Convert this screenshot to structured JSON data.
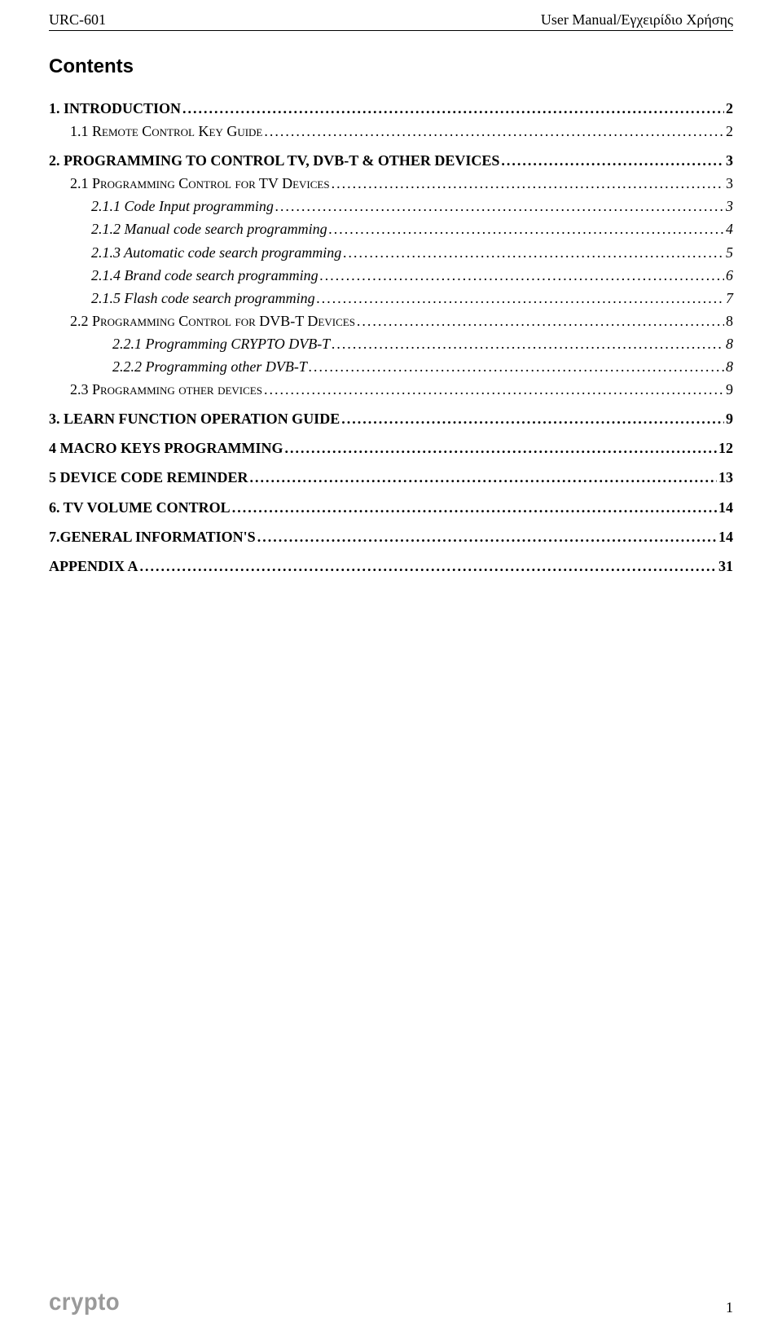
{
  "header": {
    "left": "URC-601",
    "right": "User Manual/Εγχειρίδιο Χρήσης"
  },
  "title": "Contents",
  "toc": [
    {
      "label": "1. INTRODUCTION",
      "page": "2",
      "level": 0
    },
    {
      "label": "1.1 Remote Control Key Guide",
      "page": "2",
      "level": 1
    },
    {
      "label": "2. PROGRAMMING TO CONTROL TV, DVB-T & OTHER DEVICES",
      "page": "3",
      "level": 0
    },
    {
      "label": "2.1 Programming Control for TV Devices",
      "page": "3",
      "level": 1
    },
    {
      "label": "2.1.1 Code Input programming",
      "page": "3",
      "level": 2
    },
    {
      "label": "2.1.2 Manual code search programming",
      "page": "4",
      "level": 2
    },
    {
      "label": "2.1.3 Automatic code search programming",
      "page": "5",
      "level": 2
    },
    {
      "label": "2.1.4 Brand code search programming",
      "page": "6",
      "level": 2
    },
    {
      "label": "2.1.5 Flash code search programming",
      "page": "7",
      "level": 2
    },
    {
      "label": "2.2 Programming Control for DVB-T Devices",
      "page": "8",
      "level": 1
    },
    {
      "label": "2.2.1 Programming CRYPTO DVB-T",
      "page": "8",
      "level": 3
    },
    {
      "label": "2.2.2 Programming other DVB-T",
      "page": "8",
      "level": 3
    },
    {
      "label": "2.3 Programming other devices",
      "page": "9",
      "level": 1
    },
    {
      "label": "3. LEARN FUNCTION OPERATION GUIDE",
      "page": "9",
      "level": 0
    },
    {
      "label": "4 MACRO KEYS PROGRAMMING",
      "page": "12",
      "level": 0
    },
    {
      "label": "5 DEVICE CODE REMINDER",
      "page": "13",
      "level": 0
    },
    {
      "label": "6. TV VOLUME CONTROL",
      "page": "14",
      "level": 0
    },
    {
      "label": "7.GENERAL INFORMATION'S",
      "page": "14",
      "level": 0
    },
    {
      "label": "APPENDIX A",
      "page": "31",
      "level": 0
    }
  ],
  "footer": {
    "logo": "crypto",
    "page_number": "1"
  },
  "colors": {
    "text": "#000000",
    "background": "#ffffff",
    "logo": "#9a9a9a",
    "rule": "#000000"
  },
  "typography": {
    "body_family": "Times New Roman",
    "title_family": "Arial",
    "body_size_pt": 13,
    "title_size_pt": 18,
    "logo_size_pt": 22
  }
}
